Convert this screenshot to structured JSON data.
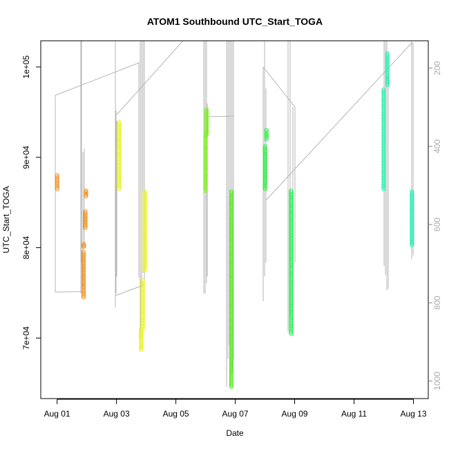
{
  "chart_data": {
    "type": "scatter",
    "title": "ATOM1 Southbound UTC_Start_TOGA",
    "xlabel": "Date",
    "ylabel": "UTC_Start_TOGA",
    "x_ticks": [
      "Aug 01",
      "Aug 03",
      "Aug 05",
      "Aug 07",
      "Aug 09",
      "Aug 11",
      "Aug 13"
    ],
    "x_tick_days": [
      1,
      3,
      5,
      7,
      9,
      11,
      13
    ],
    "xlim_days": [
      0.45,
      13.5
    ],
    "y_ticks": [
      "7e+04",
      "8e+04",
      "9e+04",
      "1e+05"
    ],
    "y_tick_values": [
      70000,
      80000,
      90000,
      100000
    ],
    "ylim": [
      63300,
      102900
    ],
    "y2_ticks": [
      "200",
      "400",
      "600",
      "800",
      "1000"
    ],
    "y2_tick_values": [
      200,
      400,
      600,
      800,
      1000
    ],
    "y2lim": [
      1045,
      130
    ],
    "series": [
      {
        "day": 1.0,
        "y_start": 86500,
        "y_end": 88000,
        "color": "#F39020"
      },
      {
        "day": 1.89,
        "y_start": 74500,
        "y_end": 79500,
        "color": "#F39020"
      },
      {
        "day": 1.9,
        "y_start": 80100,
        "y_end": 80400,
        "color": "#F39020"
      },
      {
        "day": 1.95,
        "y_start": 82200,
        "y_end": 84000,
        "color": "#F39020"
      },
      {
        "day": 1.97,
        "y_start": 85700,
        "y_end": 86300,
        "color": "#F39020"
      },
      {
        "day": 3.08,
        "y_start": 86500,
        "y_end": 93900,
        "color": "#E8F21E"
      },
      {
        "day": 3.83,
        "y_start": 68700,
        "y_end": 71000,
        "color": "#E8F21E"
      },
      {
        "day": 3.88,
        "y_start": 71000,
        "y_end": 76400,
        "color": "#E8F21E"
      },
      {
        "day": 3.95,
        "y_start": 77500,
        "y_end": 86200,
        "color": "#E8F21E"
      },
      {
        "day": 6.0,
        "y_start": 86300,
        "y_end": 92400,
        "color": "#7CF21C"
      },
      {
        "day": 6.03,
        "y_start": 92500,
        "y_end": 95300,
        "color": "#7CF21C"
      },
      {
        "day": 6.87,
        "y_start": 64600,
        "y_end": 86200,
        "color": "#58F020"
      },
      {
        "day": 8.0,
        "y_start": 86500,
        "y_end": 91200,
        "color": "#2EF040"
      },
      {
        "day": 8.05,
        "y_start": 92000,
        "y_end": 93000,
        "color": "#2EF040"
      },
      {
        "day": 8.88,
        "y_start": 70500,
        "y_end": 86300,
        "color": "#1EF04E"
      },
      {
        "day": 12.0,
        "y_start": 86500,
        "y_end": 97500,
        "color": "#1EF2B0"
      },
      {
        "day": 12.12,
        "y_start": 98000,
        "y_end": 101500,
        "color": "#1EF2B0"
      },
      {
        "day": 12.95,
        "y_start": 80300,
        "y_end": 86200,
        "color": "#1EF2B0"
      }
    ]
  }
}
